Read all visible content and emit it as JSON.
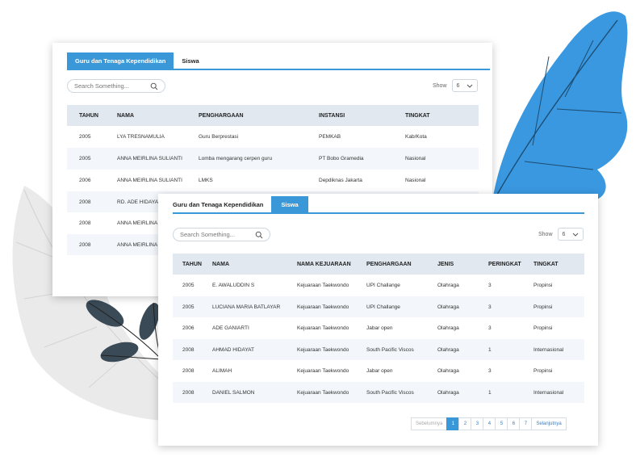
{
  "colors": {
    "accent": "#3a98d8",
    "leaf_blue": "#3a98e0",
    "leaf_dark": "#3a4a57",
    "leaf_gray": "#eaeaea"
  },
  "guru_panel": {
    "tabs": [
      {
        "label": "Guru dan Tenaga Kependidikan",
        "active": true
      },
      {
        "label": "Siswa",
        "active": false
      }
    ],
    "search_placeholder": "Search Something...",
    "show_label": "Show",
    "show_value": "6",
    "headers": [
      "TAHUN",
      "NAMA",
      "PENGHARGAAN",
      "INSTANSI",
      "TINGKAT"
    ],
    "rows": [
      [
        "2005",
        "LYA TRESNAMULIA",
        "Guru Berprestasi",
        "PEMKAB",
        "Kab/Kota"
      ],
      [
        "2005",
        "ANNA MEIRLINA SULIANTI",
        "Lomba mengarang cerpen guru",
        "PT Bobo Gramedia",
        "Nasional"
      ],
      [
        "2006",
        "ANNA MEIRLINA SULIANTI",
        "LMKS",
        "Depdiknas Jakarta",
        "Nasional"
      ],
      [
        "2008",
        "RD. ADE HIDAYAT",
        "",
        "",
        ""
      ],
      [
        "2008",
        "ANNA MEIRLINA S",
        "",
        "",
        ""
      ],
      [
        "2008",
        "ANNA MEIRLINA SULIANTI",
        "",
        "",
        ""
      ]
    ]
  },
  "siswa_panel": {
    "tabs": [
      {
        "label": "Guru dan Tenaga Kependidikan",
        "active": false
      },
      {
        "label": "Siswa",
        "active": true
      }
    ],
    "search_placeholder": "Search Something...",
    "show_label": "Show",
    "show_value": "6",
    "headers": [
      "TAHUN",
      "NAMA",
      "NAMA KEJUARAAN",
      "PENGHARGAAN",
      "JENIS",
      "PERINGKAT",
      "TINGKAT"
    ],
    "rows": [
      [
        "2005",
        "E. AWALUDDIN S",
        "Kejuaraan Taekwondo",
        "UPI Challange",
        "Olahraga",
        "3",
        "Propinsi"
      ],
      [
        "2005",
        "LUCIANA MARIA BATLAYAR",
        "Kejuaraan Taekwondo",
        "UPI Challange",
        "Olahraga",
        "3",
        "Propinsi"
      ],
      [
        "2006",
        "ADE GANIARTI",
        "Kejuaraan Taekwondo",
        "Jabar open",
        "Olahraga",
        "3",
        "Propinsi"
      ],
      [
        "2008",
        "AHMAD HIDAYAT",
        "Kejuaraan Taekwondo",
        "South Pacific Viscos",
        "Olahraga",
        "1",
        "Internasional"
      ],
      [
        "2008",
        "ALIMAH",
        "Kejuaraan Taekwondo",
        "Jabar open",
        "Olahraga",
        "3",
        "Propinsi"
      ],
      [
        "2008",
        "DANIEL SALMON",
        "Kejuaraan Taekwondo",
        "South Pacific Viscos",
        "Olahraga",
        "1",
        "Internasional"
      ]
    ],
    "pagination": {
      "prev": "Sebelumnya",
      "pages": [
        "1",
        "2",
        "3",
        "4",
        "5",
        "6",
        "7"
      ],
      "current": "1",
      "next": "Selanjutnya"
    }
  }
}
